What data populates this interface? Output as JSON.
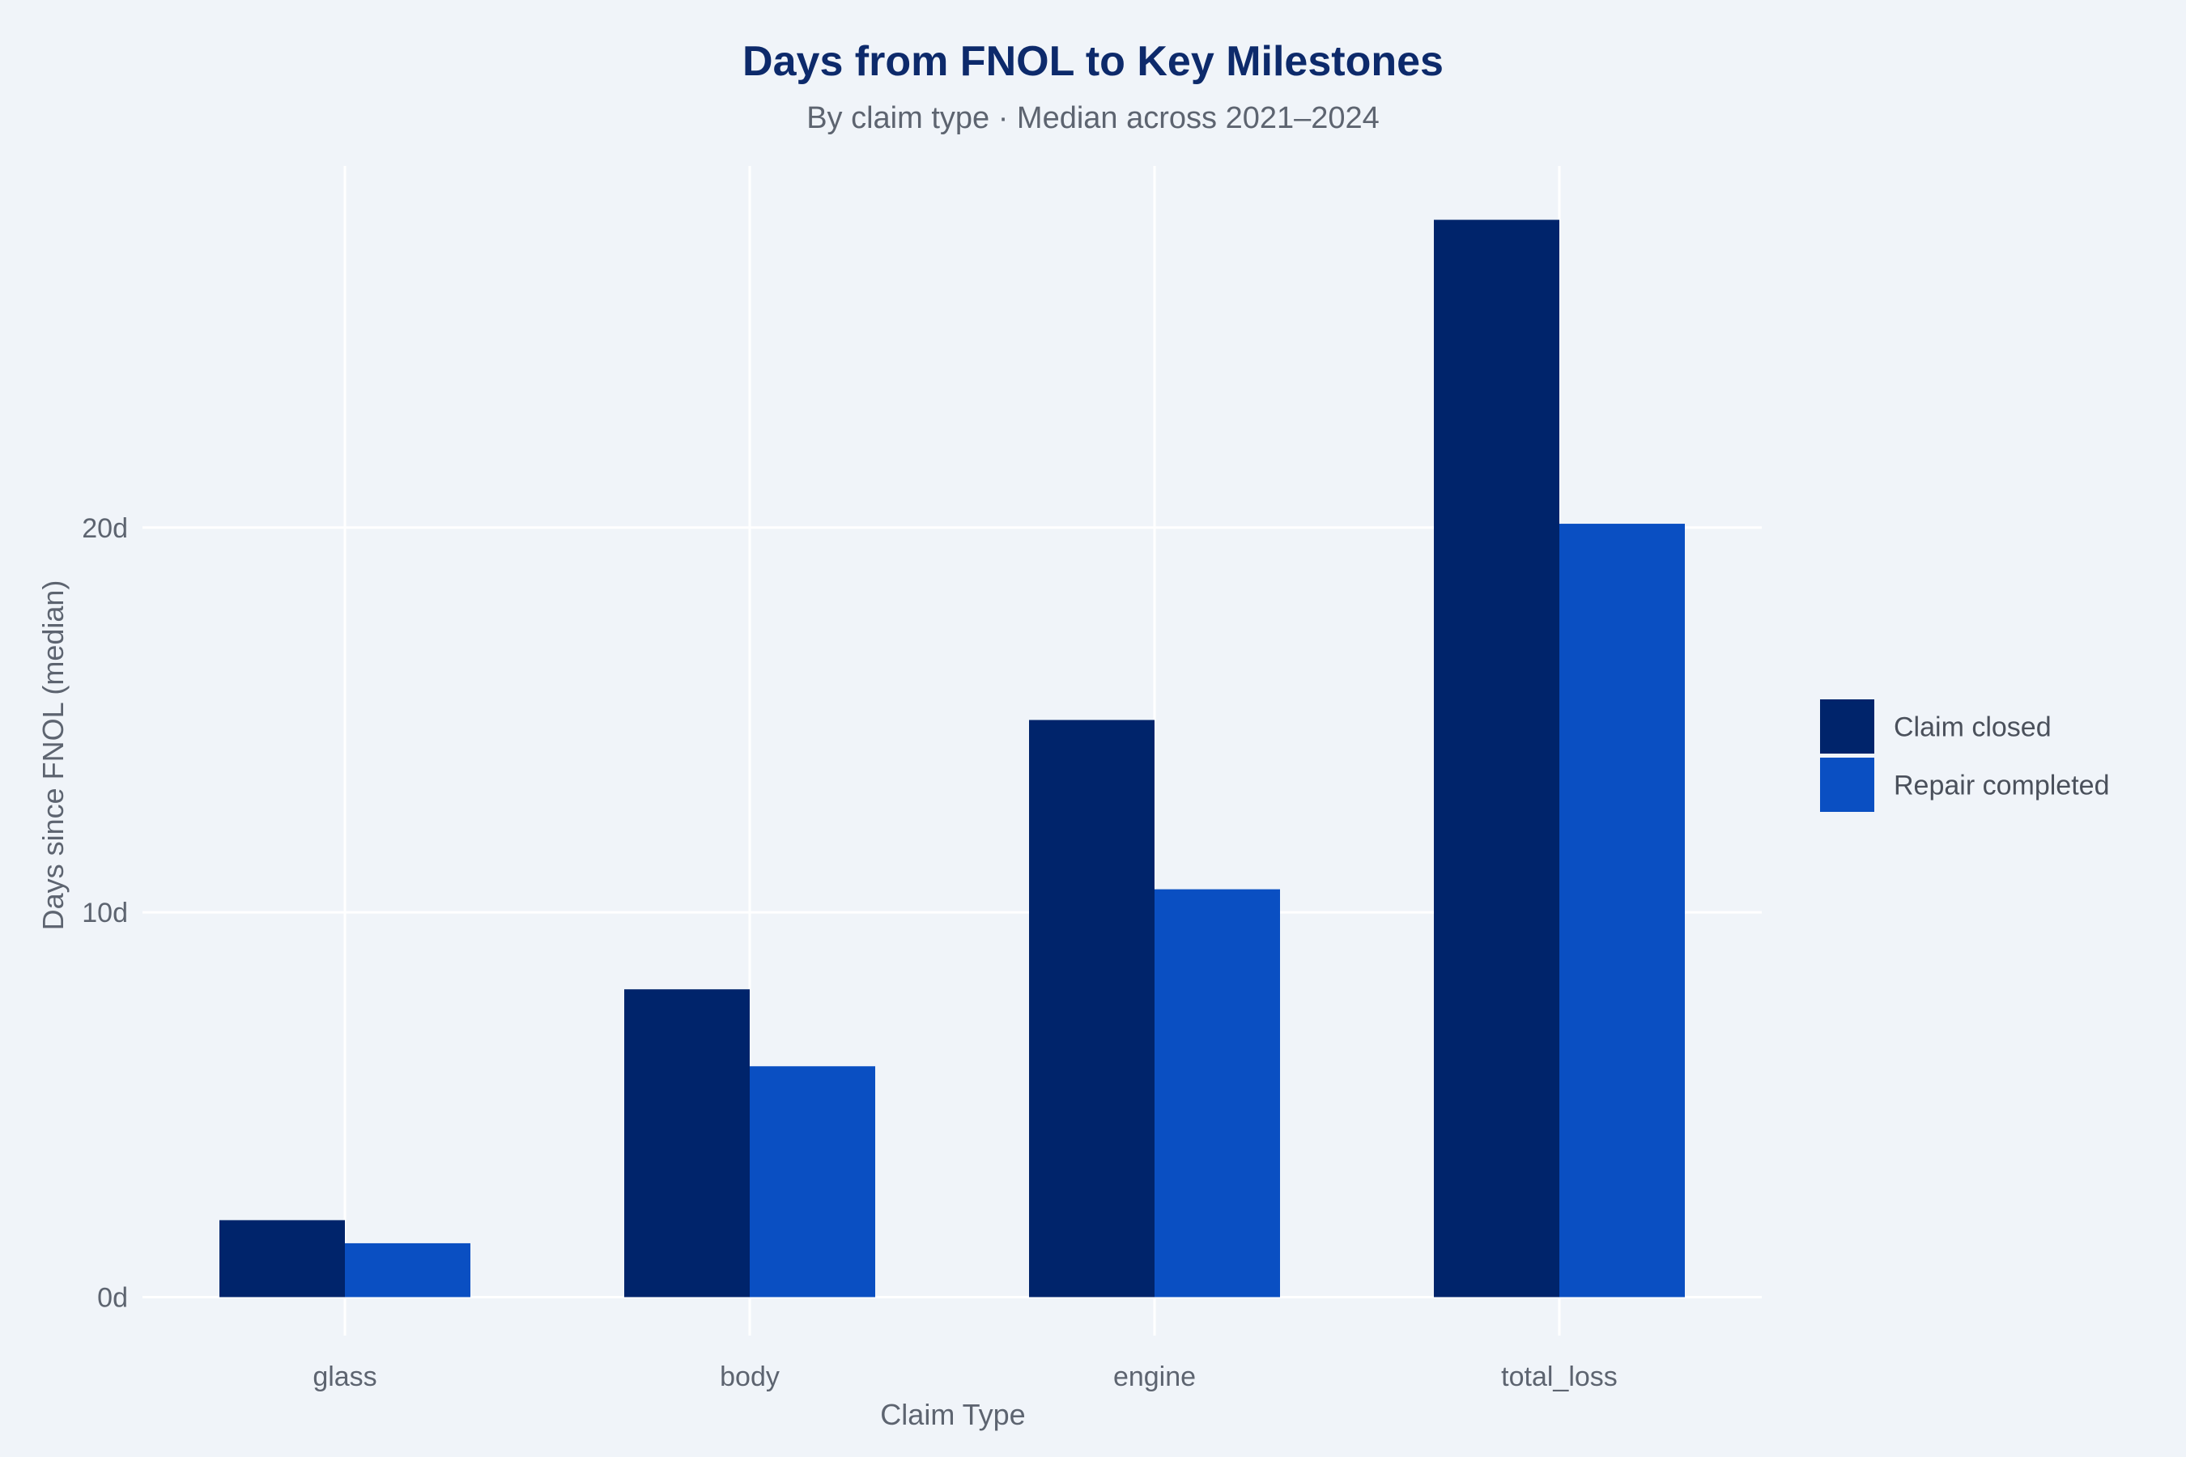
{
  "chart_data": {
    "type": "bar",
    "title": "Days from FNOL to Key Milestones",
    "subtitle": "By claim type · Median across 2021–2024",
    "xlabel": "Claim Type",
    "ylabel": "Days since FNOL (median)",
    "categories": [
      "glass",
      "body",
      "engine",
      "total_loss"
    ],
    "series": [
      {
        "name": "Claim closed",
        "values": [
          2.0,
          8.0,
          15.0,
          28.0
        ],
        "color": "#00246b"
      },
      {
        "name": "Repair completed",
        "values": [
          1.4,
          6.0,
          10.6,
          20.1
        ],
        "color": "#0a4fc2"
      }
    ],
    "ylim": [
      -1,
      29.4
    ],
    "yticks": [
      0,
      10,
      20
    ],
    "ytick_labels": [
      "0d",
      "10d",
      "20d"
    ],
    "grid": true,
    "legend_position": "right",
    "colors": {
      "background": "#f0f4f9",
      "grid": "#ffffff",
      "title": "#0d2a6b"
    }
  }
}
